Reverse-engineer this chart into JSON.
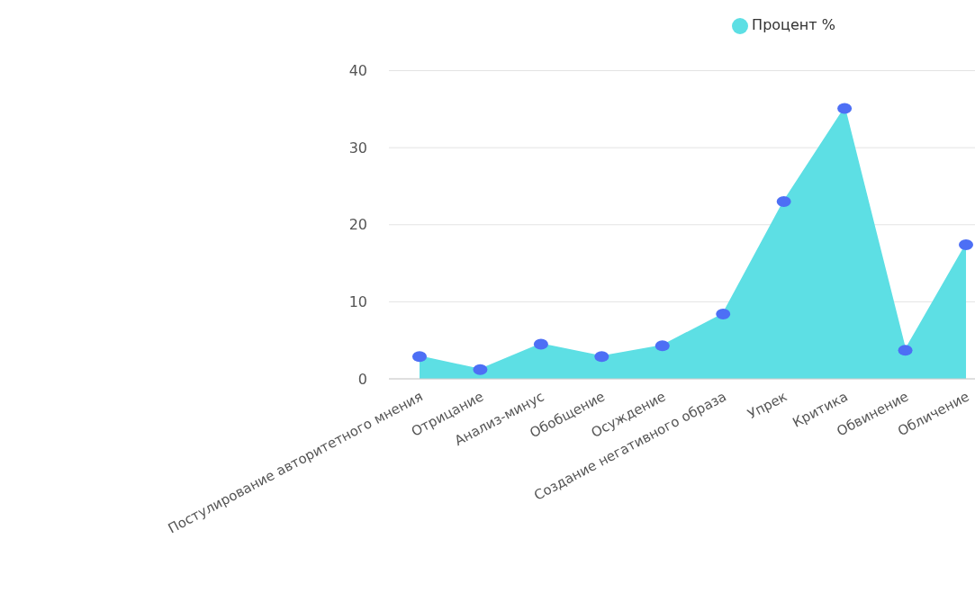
{
  "chart_data": {
    "type": "area",
    "categories": [
      "Постулирование авторитетного мнения",
      "Отрицание",
      "Анализ-минус",
      "Обобщение",
      "Осуждение",
      "Создание негативного образа",
      "Упрек",
      "Критика",
      "Обвинение",
      "Обличение"
    ],
    "series": [
      {
        "name": "Процент %",
        "color": "#5ddfe4",
        "colors": [
          "#4d6ff5",
          "#4d6ff5",
          "#4d6ff5",
          "#4d6ff5",
          "#4d6ff5",
          "#4d6ff5",
          "#4d6ff5",
          "#4d6ff5",
          "#4d6ff5",
          "#4d6ff5"
        ],
        "values": [
          2.9,
          1.2,
          4.5,
          2.9,
          4.3,
          8.4,
          23,
          35.1,
          3.7,
          17.4
        ]
      }
    ],
    "ylim": [
      0,
      40
    ],
    "yticks": [
      0,
      10,
      20,
      30,
      40
    ],
    "grid": "y",
    "legend": "top",
    "marker": "circle"
  }
}
